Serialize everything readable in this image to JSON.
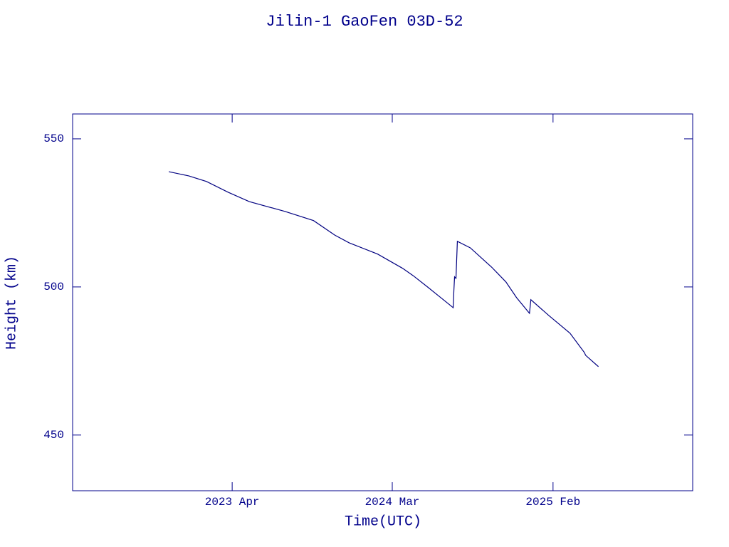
{
  "chart_data": {
    "type": "line",
    "title": "Jilin-1 GaoFen 03D-52",
    "x_label": "Time(UTC)",
    "y_label": "Height (km)",
    "x": [
      2022.884,
      2022.998,
      2023.1,
      2023.223,
      2023.345,
      2023.549,
      2023.713,
      2023.835,
      2023.917,
      2024.08,
      2024.223,
      2024.284,
      2024.366,
      2024.427,
      2024.513,
      2024.517,
      2024.521,
      2024.529,
      2024.537,
      2024.611,
      2024.733,
      2024.815,
      2024.876,
      2024.95,
      2024.958,
      2025.06,
      2025.182,
      2025.264,
      2025.272,
      2025.345
    ],
    "series": [
      {
        "name": "Height",
        "color": "#000080",
        "values": [
          538.9,
          537.5,
          535.6,
          532.0,
          528.8,
          525.5,
          522.4,
          517.5,
          514.9,
          511.1,
          506.3,
          503.8,
          500.0,
          497.1,
          493.0,
          498.8,
          503.4,
          502.9,
          515.4,
          513.2,
          506.7,
          501.7,
          496.4,
          491.1,
          495.7,
          490.4,
          484.4,
          477.9,
          476.9,
          473.1
        ]
      }
    ],
    "xlim": [
      2022.333,
      2025.885
    ],
    "xticks": [
      {
        "value": 2023.247,
        "label": "2023 Apr"
      },
      {
        "value": 2024.164,
        "label": "2024 Mar"
      },
      {
        "value": 2025.085,
        "label": "2025 Feb"
      }
    ],
    "ylim": [
      431.2,
      558.4
    ],
    "yticks": [
      450,
      500,
      550
    ],
    "axis_color": "#00008b"
  }
}
